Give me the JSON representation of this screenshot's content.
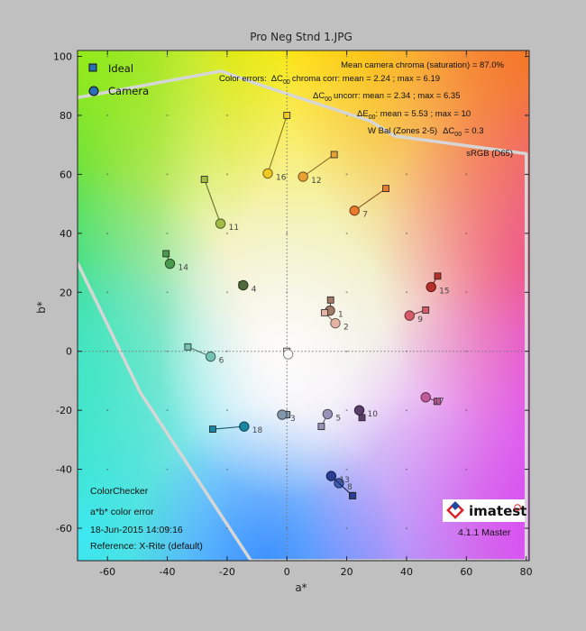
{
  "window_title": "Pro Neg Stnd 1.JPG",
  "chart_data": {
    "type": "scatter",
    "title": "Pro Neg Stnd 1.JPG",
    "xlabel": "a*",
    "ylabel": "b*",
    "xlim": [
      -70,
      81
    ],
    "ylim": [
      -71,
      102
    ],
    "xticks": [
      -60,
      -40,
      -20,
      0,
      20,
      40,
      60,
      80
    ],
    "yticks": [
      -60,
      -40,
      -20,
      0,
      20,
      40,
      60,
      80,
      100
    ],
    "grid": "dotted",
    "legend_position": "top-left",
    "series": [
      {
        "name": "Ideal",
        "marker": "square"
      },
      {
        "name": "Camera",
        "marker": "circle"
      }
    ],
    "points": [
      {
        "id": "1",
        "ideal": [
          14.6,
          17.4
        ],
        "camera": [
          14.4,
          13.8
        ],
        "color": "#a27a68"
      },
      {
        "id": "2",
        "ideal": [
          12.6,
          13.1
        ],
        "camera": [
          16.2,
          9.5
        ],
        "color": "#e3b4a4"
      },
      {
        "id": "3",
        "ideal": [
          0.0,
          -21.5
        ],
        "camera": [
          -1.6,
          -21.5
        ],
        "color": "#8296ac"
      },
      {
        "id": "4",
        "ideal": [
          -15.0,
          22.5
        ],
        "camera": [
          -14.6,
          22.4
        ],
        "color": "#52693c"
      },
      {
        "id": "5",
        "ideal": [
          11.5,
          -25.5
        ],
        "camera": [
          13.6,
          -21.3
        ],
        "color": "#9893b6"
      },
      {
        "id": "6",
        "ideal": [
          -33.1,
          1.5
        ],
        "camera": [
          -25.5,
          -1.8
        ],
        "color": "#74c2b2"
      },
      {
        "id": "7",
        "ideal": [
          33.1,
          55.2
        ],
        "camera": [
          22.6,
          47.7
        ],
        "color": "#e87a2c"
      },
      {
        "id": "8",
        "ideal": [
          21.9,
          -48.9
        ],
        "camera": [
          17.4,
          -44.7
        ],
        "color": "#3e5cb0"
      },
      {
        "id": "9",
        "ideal": [
          46.4,
          14.0
        ],
        "camera": [
          41.0,
          12.1
        ],
        "color": "#d65b68"
      },
      {
        "id": "10",
        "ideal": [
          25.1,
          -22.5
        ],
        "camera": [
          24.2,
          -20.0
        ],
        "color": "#5b3e6a"
      },
      {
        "id": "11",
        "ideal": [
          -27.6,
          58.3
        ],
        "camera": [
          -22.2,
          43.3
        ],
        "color": "#a2bc45"
      },
      {
        "id": "12",
        "ideal": [
          15.8,
          66.7
        ],
        "camera": [
          5.4,
          59.2
        ],
        "color": "#e6a234"
      },
      {
        "id": "13",
        "ideal": [
          22.0,
          -49.0
        ],
        "camera": [
          14.8,
          -42.3
        ],
        "color": "#2c3e94"
      },
      {
        "id": "14",
        "ideal": [
          -40.4,
          33.1
        ],
        "camera": [
          -39.1,
          29.7
        ],
        "color": "#4a9a4e"
      },
      {
        "id": "15",
        "ideal": [
          50.4,
          25.5
        ],
        "camera": [
          48.2,
          21.8
        ],
        "color": "#b53028"
      },
      {
        "id": "16",
        "ideal": [
          0.0,
          80.0
        ],
        "camera": [
          -6.4,
          60.3
        ],
        "color": "#eec923"
      },
      {
        "id": "17",
        "ideal": [
          50.2,
          -17.0
        ],
        "camera": [
          46.4,
          -15.6
        ],
        "color": "#c05a98"
      },
      {
        "id": "18",
        "ideal": [
          -24.8,
          -26.4
        ],
        "camera": [
          -14.3,
          -25.5
        ],
        "color": "#1986a2"
      },
      {
        "id": "",
        "ideal": [
          0.0,
          0.0
        ],
        "camera": [
          0.4,
          -1.0
        ],
        "color": "#ffffff"
      }
    ],
    "gamut_label": "sRGB (D65)",
    "gamut_boundary": [
      [
        -70,
        86
      ],
      [
        -22,
        95
      ],
      [
        -8,
        90
      ],
      [
        28,
        78
      ],
      [
        36,
        73
      ],
      [
        80,
        67
      ],
      [
        80,
        -71
      ],
      [
        -12,
        -71
      ],
      [
        -49,
        -14
      ],
      [
        -70,
        30
      ]
    ],
    "annotations": {
      "mean_chroma": "Mean camera chroma (saturation) = 87.0%",
      "chroma_corr_prefix": "Color errors:",
      "chroma_corr_tail": "chroma corr: mean = 2.24 ; max = 6.19",
      "uncorr_tail": "uncorr: mean = 2.34 ; max = 6.35",
      "de00_tail": ": mean = 5.53 ; max = 10",
      "wbal_prefix": "W Bal (Zones 2-5)",
      "wbal_tail": "= 0.3"
    },
    "info_block": {
      "chart_name": "ColorChecker",
      "plot_kind": "a*b* color error",
      "date": "18-Jun-2015 14:09:16",
      "reference": "Reference: X-Rite (default)",
      "version": "4.1.1 Master",
      "brand": "imatest"
    }
  }
}
